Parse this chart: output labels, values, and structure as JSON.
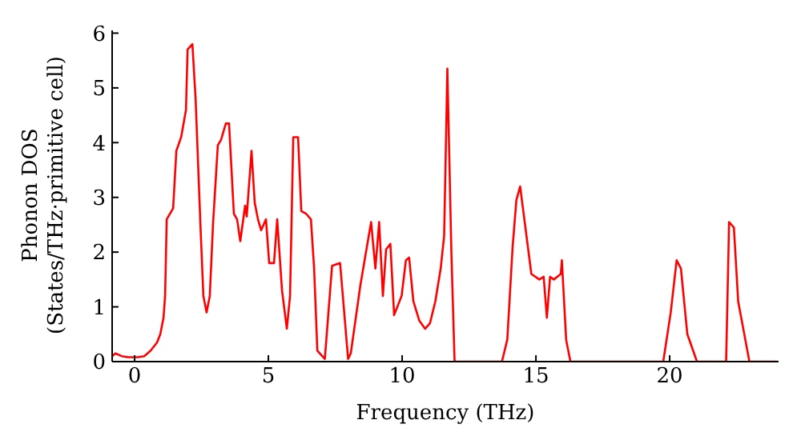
{
  "chart_data": {
    "type": "line",
    "xlabel": "Frequency (THz)",
    "ylabel": "Phonon DOS\n(States/THz·primitive cell)",
    "x": [
      -0.84,
      -0.72,
      -0.48,
      -0.24,
      0.12,
      0.36,
      0.6,
      0.84,
      0.96,
      1.08,
      1.14,
      1.2,
      1.44,
      1.56,
      1.74,
      1.92,
      1.98,
      2.16,
      2.28,
      2.46,
      2.57,
      2.69,
      2.81,
      2.93,
      3.11,
      3.23,
      3.41,
      3.53,
      3.71,
      3.83,
      3.95,
      4.13,
      4.19,
      4.37,
      4.49,
      4.61,
      4.73,
      4.91,
      5.03,
      5.21,
      5.33,
      5.51,
      5.69,
      5.81,
      5.93,
      6.11,
      6.23,
      6.41,
      6.59,
      6.71,
      6.83,
      7.11,
      7.38,
      7.68,
      7.98,
      8.08,
      8.44,
      8.84,
      9.0,
      9.14,
      9.28,
      9.4,
      9.56,
      9.7,
      9.98,
      10.14,
      10.26,
      10.42,
      10.64,
      10.86,
      11.04,
      11.24,
      11.44,
      11.57,
      11.69,
      11.84,
      11.96,
      13.73,
      13.93,
      14.13,
      14.27,
      14.41,
      14.83,
      15.13,
      15.29,
      15.41,
      15.53,
      15.67,
      15.93,
      15.97,
      16.13,
      16.29,
      19.76,
      20.04,
      20.26,
      20.42,
      20.66,
      21.02,
      22.11,
      22.22,
      22.4,
      22.56,
      22.98,
      24.03
    ],
    "series": [
      {
        "color": "#ff0000",
        "values": [
          0.1,
          0.15,
          0.1,
          0.08,
          0.08,
          0.1,
          0.2,
          0.35,
          0.5,
          0.8,
          1.2,
          2.6,
          2.8,
          3.85,
          4.1,
          4.6,
          5.7,
          5.8,
          4.8,
          2.5,
          1.2,
          0.9,
          1.2,
          2.5,
          3.95,
          4.05,
          4.35,
          4.35,
          2.7,
          2.6,
          2.2,
          2.85,
          2.65,
          3.85,
          2.9,
          2.6,
          2.4,
          2.6,
          1.8,
          1.8,
          2.6,
          1.3,
          0.6,
          1.2,
          4.1,
          4.1,
          2.75,
          2.7,
          2.6,
          1.7,
          0.2,
          0.05,
          1.75,
          1.8,
          0.05,
          0.15,
          1.4,
          2.55,
          1.7,
          2.55,
          1.2,
          2.05,
          2.15,
          0.85,
          1.2,
          1.85,
          1.9,
          1.1,
          0.75,
          0.6,
          0.7,
          1.1,
          1.7,
          2.3,
          5.35,
          2.0,
          0,
          0,
          0.4,
          2.1,
          2.95,
          3.2,
          1.6,
          1.5,
          1.55,
          0.8,
          1.55,
          1.5,
          1.6,
          1.85,
          0.4,
          0,
          0,
          0.9,
          1.85,
          1.7,
          0.5,
          0,
          0,
          2.55,
          2.45,
          1.1,
          0,
          0
        ]
      }
    ],
    "xlim": [
      -0.84,
      24.07
    ],
    "xticks": [
      0,
      5,
      10,
      15,
      20
    ],
    "ylim": [
      0,
      6.05
    ],
    "yticks": [
      0,
      1,
      2,
      3,
      4,
      5,
      6
    ],
    "grid": false,
    "legend": false,
    "marker": "none",
    "line_style": "solid"
  }
}
